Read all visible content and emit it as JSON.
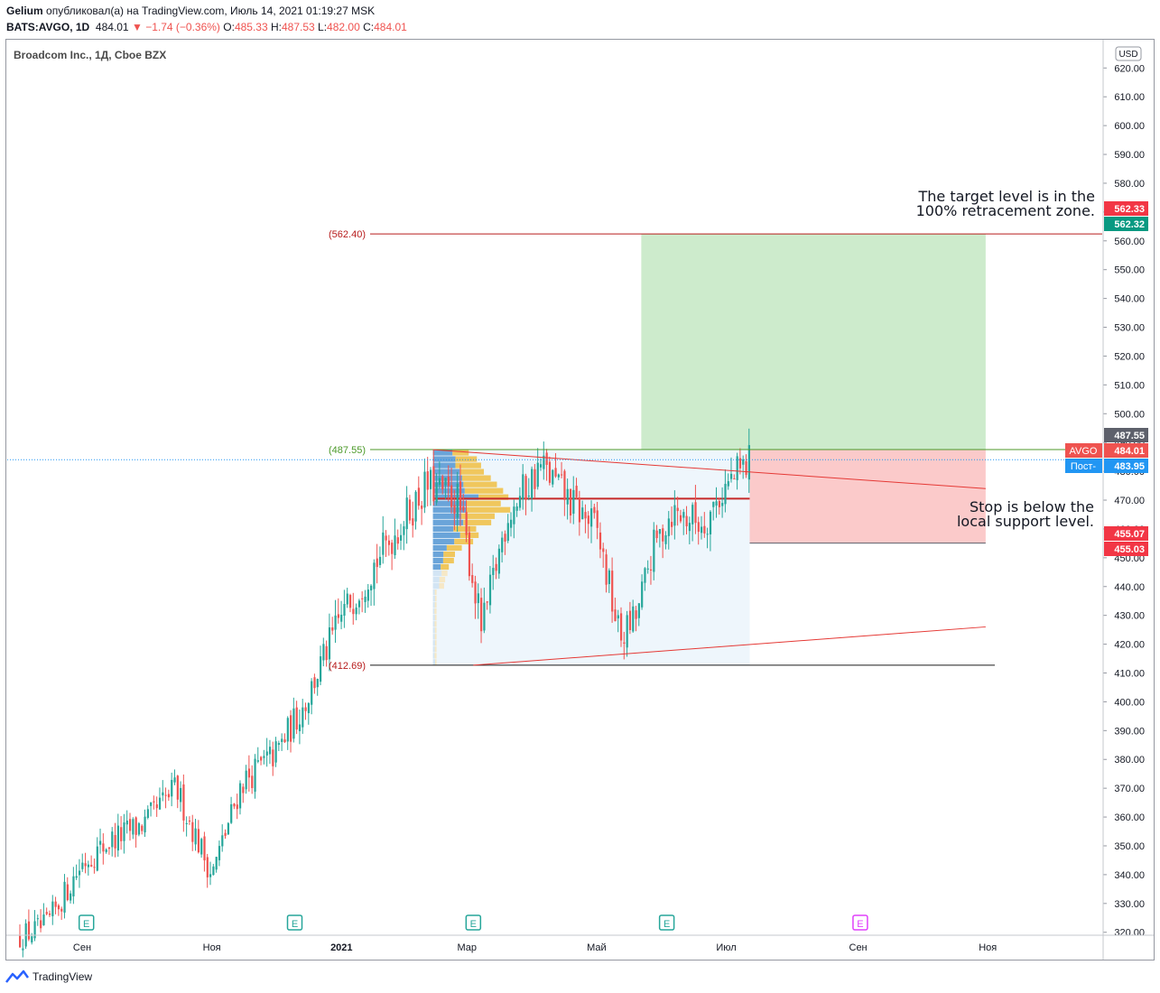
{
  "header": {
    "author": "Gelium",
    "published_text": "опубликовал(а) на TradingView.com, Июль 14, 2021 01:19:27 MSK",
    "symbol": "BATS:AVGO, 1D",
    "last": "484.01",
    "change": "−1.74 (−0.36%)",
    "open_label": "O:",
    "open": "485.33",
    "high_label": "H:",
    "high": "487.53",
    "low_label": "L:",
    "low": "482.00",
    "close_label": "C:",
    "close": "484.01"
  },
  "chart_title": "Broadcom Inc., 1Д, Cboe BZX",
  "currency": "USD",
  "footer": {
    "brand": "TradingView"
  },
  "colors": {
    "up": "#26a69a",
    "down": "#ef5350",
    "target_zone": "#cdebcc",
    "stop_zone": "#fbcaca",
    "profile_bg": "#eef6fc",
    "line_red": "#e53935",
    "line_green": "#4c9a2a",
    "earnings_green": "#26a69a",
    "earnings_future": "#e040fb"
  },
  "chart_data": {
    "type": "candlestick",
    "title": "Broadcom Inc., 1Д, Cboe BZX",
    "y_axis": {
      "ticks": [
        "320.00",
        "330.00",
        "340.00",
        "350.00",
        "360.00",
        "370.00",
        "380.00",
        "390.00",
        "400.00",
        "410.00",
        "420.00",
        "430.00",
        "440.00",
        "450.00",
        "460.00",
        "470.00",
        "480.00",
        "490.00",
        "500.00",
        "510.00",
        "520.00",
        "530.00",
        "540.00",
        "550.00",
        "560.00",
        "570.00",
        "580.00",
        "590.00",
        "600.00",
        "610.00",
        "620.00"
      ],
      "range": [
        317,
        628
      ],
      "position": "right"
    },
    "x_axis": {
      "labels": [
        {
          "label": "Сен",
          "date": "2020-09"
        },
        {
          "label": "Ноя",
          "date": "2020-11"
        },
        {
          "label": "2021",
          "date": "2021-01"
        },
        {
          "label": "Мар",
          "date": "2021-03"
        },
        {
          "label": "Май",
          "date": "2021-05"
        },
        {
          "label": "Июл",
          "date": "2021-07"
        },
        {
          "label": "Сен",
          "date": "2021-09"
        },
        {
          "label": "Ноя",
          "date": "2021-11"
        }
      ]
    },
    "price_path": [
      [
        "2020-08-01",
        318
      ],
      [
        "2020-08-15",
        322
      ],
      [
        "2020-09-01",
        344
      ],
      [
        "2020-09-15",
        352
      ],
      [
        "2020-10-01",
        358
      ],
      [
        "2020-10-15",
        370
      ],
      [
        "2020-11-01",
        340
      ],
      [
        "2020-11-15",
        372
      ],
      [
        "2020-12-01",
        382
      ],
      [
        "2020-12-15",
        400
      ],
      [
        "2021-01-01",
        430
      ],
      [
        "2021-01-20",
        452
      ],
      [
        "2021-02-10",
        475
      ],
      [
        "2021-02-25",
        470
      ],
      [
        "2021-03-08",
        425
      ],
      [
        "2021-03-20",
        465
      ],
      [
        "2021-04-05",
        482
      ],
      [
        "2021-04-20",
        468
      ],
      [
        "2021-05-01",
        460
      ],
      [
        "2021-05-12",
        422
      ],
      [
        "2021-05-20",
        430
      ],
      [
        "2021-05-27",
        452
      ],
      [
        "2021-06-05",
        466
      ],
      [
        "2021-06-20",
        462
      ],
      [
        "2021-07-01",
        475
      ],
      [
        "2021-07-13",
        484
      ]
    ],
    "levels": [
      {
        "label": "(562.40)",
        "price": 562.4
      },
      {
        "label": "(487.55)",
        "price": 487.55
      },
      {
        "label": "(412.69)",
        "price": 412.69
      }
    ],
    "price_tags": [
      {
        "text": "562.33",
        "price": 562.33,
        "color": "#f23645"
      },
      {
        "text": "562.32",
        "price": 562.32,
        "color": "#089981"
      },
      {
        "text": "487.55",
        "price": 487.55,
        "color": "#5d606b"
      },
      {
        "text": "484.01",
        "price": 484.01,
        "color": "#ef5350",
        "prefix": "AVGO"
      },
      {
        "text": "483.95",
        "price": 483.95,
        "color": "#2196f3",
        "prefix": "Пост-"
      },
      {
        "text": "455.07",
        "price": 455.07,
        "color": "#f23645"
      },
      {
        "text": "455.03",
        "price": 455.03,
        "color": "#f23645"
      }
    ],
    "position": {
      "entry": 487.55,
      "target": 562.32,
      "stop": 455.07,
      "start": "2021-05-22",
      "end": "2021-10-31"
    },
    "volume_profile": {
      "from": "2021-02-13",
      "to": "2021-07-12",
      "low": 412.69,
      "high": 487.55,
      "poc": 470.5
    },
    "trendlines": [
      {
        "from": [
          "2021-02-13",
          487.5
        ],
        "to": [
          "2021-10-31",
          474.0
        ]
      },
      {
        "from": [
          "2021-03-04",
          412.69
        ],
        "to": [
          "2021-10-31",
          426.0
        ]
      }
    ],
    "earnings": [
      {
        "date": "2020-09-03",
        "label": "E",
        "future": false
      },
      {
        "date": "2020-12-10",
        "label": "E",
        "future": false
      },
      {
        "date": "2021-03-04",
        "label": "E",
        "future": false
      },
      {
        "date": "2021-06-03",
        "label": "E",
        "future": false
      },
      {
        "date": "2021-09-02",
        "label": "E",
        "future": true
      }
    ],
    "annotations": [
      {
        "text": [
          "The target level is in the",
          "100% retracement zone."
        ],
        "anchor_price": 566
      },
      {
        "text": [
          "Stop is below the",
          "local support level."
        ],
        "anchor_price": 458
      }
    ]
  }
}
